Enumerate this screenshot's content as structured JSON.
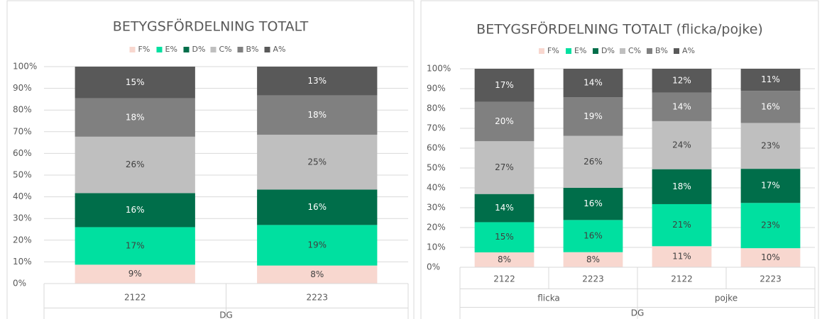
{
  "chart_data": [
    {
      "type": "stacked_bar_100",
      "title": "BETYGSFÖRDELNING TOTALT",
      "categories": [
        "2122",
        "2223"
      ],
      "axis_group": "DG",
      "series": [
        {
          "name": "F%",
          "color": "#f8d7cf",
          "values": [
            8.7,
            8.3
          ],
          "value_labels": [
            "9%",
            "8%"
          ]
        },
        {
          "name": "E%",
          "color": "#00e0a0",
          "values": [
            17.3,
            18.7
          ],
          "value_labels": [
            "17%",
            "19%"
          ]
        },
        {
          "name": "D%",
          "color": "#006e4a",
          "values": [
            15.7,
            16.3
          ],
          "value_labels": [
            "16%",
            "16%"
          ]
        },
        {
          "name": "C%",
          "color": "#bfbfbf",
          "values": [
            26,
            25.3
          ],
          "value_labels": [
            "26%",
            "25%"
          ]
        },
        {
          "name": "B%",
          "color": "#808080",
          "values": [
            17.7,
            18.1
          ],
          "value_labels": [
            "18%",
            "18%"
          ]
        },
        {
          "name": "A%",
          "color": "#595959",
          "values": [
            14.6,
            13.3
          ],
          "value_labels": [
            "15%",
            "13%"
          ]
        }
      ],
      "ylim": [
        0,
        100
      ],
      "yticks": [
        {
          "value": 0,
          "label": "0%"
        },
        {
          "value": 10,
          "label": "10%"
        },
        {
          "value": 20,
          "label": "20%"
        },
        {
          "value": 30,
          "label": "30%"
        },
        {
          "value": 40,
          "label": "40%"
        },
        {
          "value": 50,
          "label": "50%"
        },
        {
          "value": 60,
          "label": "60%"
        },
        {
          "value": 70,
          "label": "70%"
        },
        {
          "value": 80,
          "label": "80%"
        },
        {
          "value": 90,
          "label": "90%"
        },
        {
          "value": 100,
          "label": "100%"
        }
      ],
      "grid": true,
      "legend": "top"
    },
    {
      "type": "stacked_bar_100",
      "title": "BETYGSFÖRDELNING TOTALT  (flicka/pojke)",
      "categories": [
        "2122",
        "2223",
        "2122",
        "2223"
      ],
      "groups": [
        {
          "label": "flicka",
          "size": 2
        },
        {
          "label": "pojke",
          "size": 2
        }
      ],
      "axis_group": "DG",
      "series": [
        {
          "name": "F%",
          "color": "#f8d7cf",
          "values": [
            7.5,
            7.6,
            10.6,
            9.6
          ],
          "value_labels": [
            "8%",
            "8%",
            "11%",
            "10%"
          ]
        },
        {
          "name": "E%",
          "color": "#00e0a0",
          "values": [
            15.2,
            16.2,
            21.2,
            22.8
          ],
          "value_labels": [
            "15%",
            "16%",
            "21%",
            "23%"
          ]
        },
        {
          "name": "D%",
          "color": "#006e4a",
          "values": [
            14.2,
            16.2,
            17.6,
            17.2
          ],
          "value_labels": [
            "14%",
            "16%",
            "18%",
            "17%"
          ]
        },
        {
          "name": "C%",
          "color": "#bfbfbf",
          "values": [
            26.6,
            26.2,
            24.2,
            23.1
          ],
          "value_labels": [
            "27%",
            "26%",
            "24%",
            "23%"
          ]
        },
        {
          "name": "B%",
          "color": "#808080",
          "values": [
            19.8,
            19.4,
            14.4,
            16.2
          ],
          "value_labels": [
            "20%",
            "19%",
            "14%",
            "16%"
          ]
        },
        {
          "name": "A%",
          "color": "#595959",
          "values": [
            16.7,
            14.4,
            12,
            11.1
          ],
          "value_labels": [
            "17%",
            "14%",
            "12%",
            "11%"
          ]
        }
      ],
      "ylim": [
        0,
        100
      ],
      "yticks": [
        {
          "value": 0,
          "label": "0%"
        },
        {
          "value": 10,
          "label": "10%"
        },
        {
          "value": 20,
          "label": "20%"
        },
        {
          "value": 30,
          "label": "30%"
        },
        {
          "value": 40,
          "label": "40%"
        },
        {
          "value": 50,
          "label": "50%"
        },
        {
          "value": 60,
          "label": "60%"
        },
        {
          "value": 70,
          "label": "70%"
        },
        {
          "value": 80,
          "label": "80%"
        },
        {
          "value": 90,
          "label": "90%"
        },
        {
          "value": 100,
          "label": "100%"
        }
      ],
      "grid": true,
      "legend": "top"
    }
  ]
}
